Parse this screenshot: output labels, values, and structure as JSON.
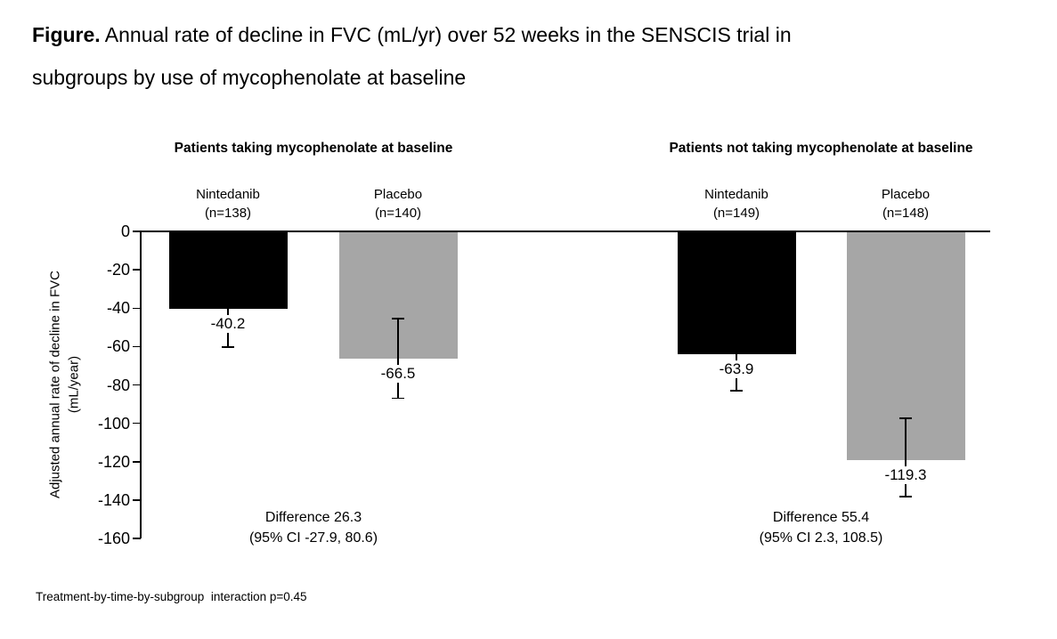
{
  "figure": {
    "title_prefix": "Figure.",
    "title_line1": " Annual rate of decline in FVC (mL/yr) over 52 weeks in the SENSCIS trial in",
    "title_line2": "subgroups by use of mycophenolate at baseline",
    "footnote": "Treatment-by-time-by-subgroup  interaction p=0.45"
  },
  "chart_data": {
    "type": "bar",
    "title": "Annual rate of decline in FVC (mL/yr) over 52 weeks in the SENSCIS trial in subgroups by use of mycophenolate at baseline",
    "ylabel_line1": "Adjusted annual rate of decline in FVC",
    "ylabel_line2": "(mL/year)",
    "ylim": [
      -160,
      0
    ],
    "yticks": [
      0,
      -20,
      -40,
      -60,
      -80,
      -100,
      -120,
      -140,
      -160
    ],
    "grid": false,
    "legend": "none",
    "bar_colors": {
      "nintedanib": "#000000",
      "placebo": "#a6a6a6"
    },
    "groups": [
      {
        "header": "Patients taking mycophenolate at baseline",
        "difference_line1": "Difference 26.3",
        "difference_line2": "(95% CI -27.9, 80.6)",
        "bars": [
          {
            "label": "Nintedanib",
            "n_label": "(n=138)",
            "value": -40.2,
            "value_label": "-40.2",
            "color": "#000000",
            "error_upper": 20,
            "error_lower": 20
          },
          {
            "label": "Placebo",
            "n_label": "(n=140)",
            "value": -66.5,
            "value_label": "-66.5",
            "color": "#a6a6a6",
            "error_upper": 21,
            "error_lower": 20.5
          }
        ]
      },
      {
        "header": "Patients not taking mycophenolate at baseline",
        "difference_line1": "Difference 55.4",
        "difference_line2": "(95% CI 2.3, 108.5)",
        "bars": [
          {
            "label": "Nintedanib",
            "n_label": "(n=149)",
            "value": -63.9,
            "value_label": "-63.9",
            "color": "#000000",
            "error_upper": 19,
            "error_lower": 19
          },
          {
            "label": "Placebo",
            "n_label": "(n=148)",
            "value": -119.3,
            "value_label": "-119.3",
            "color": "#a6a6a6",
            "error_upper": 22,
            "error_lower": 19
          }
        ]
      }
    ]
  }
}
